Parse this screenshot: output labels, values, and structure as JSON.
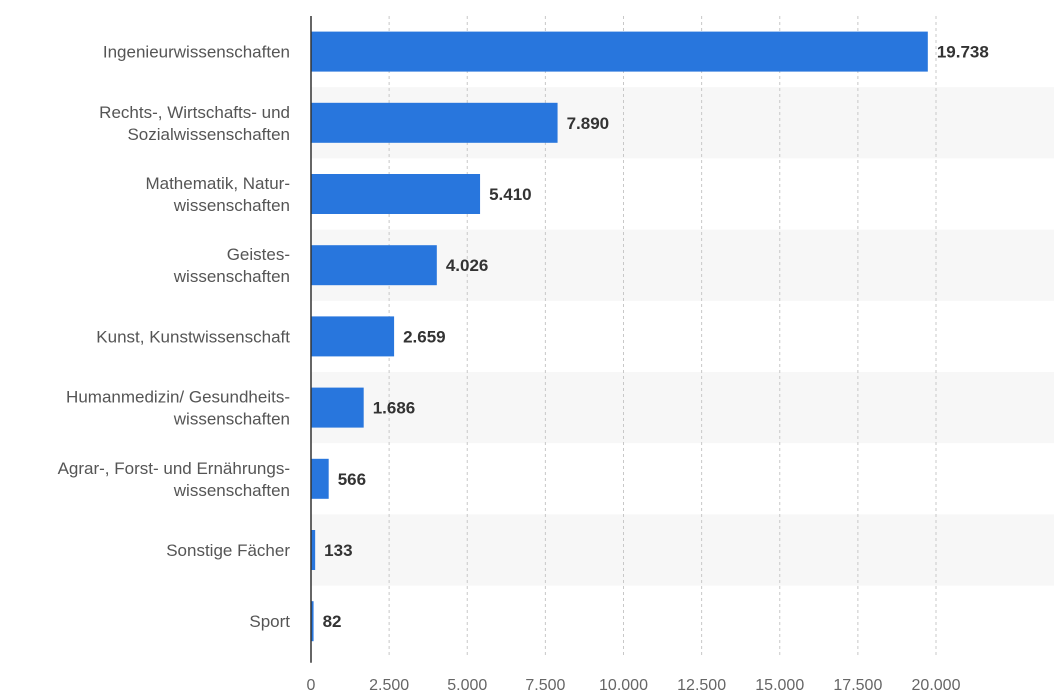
{
  "chart_data": {
    "type": "bar",
    "orientation": "horizontal",
    "title": "",
    "xlabel": "",
    "ylabel": "",
    "categories": [
      [
        "Ingenieurwissenschaften"
      ],
      [
        "Rechts-, Wirtschafts- und",
        "Sozialwissenschaften"
      ],
      [
        "Mathematik, Natur-",
        "wissenschaften"
      ],
      [
        "Geistes-",
        "wissenschaften"
      ],
      [
        "Kunst, Kunstwissenschaft"
      ],
      [
        "Humanmedizin/ Gesundheits-",
        "wissenschaften"
      ],
      [
        "Agrar-, Forst- und Ernährungs-",
        "wissenschaften"
      ],
      [
        "Sonstige Fächer"
      ],
      [
        "Sport"
      ]
    ],
    "values": [
      19738,
      7890,
      5410,
      4026,
      2659,
      1686,
      566,
      133,
      82
    ],
    "value_labels": [
      "19.738",
      "7.890",
      "5.410",
      "4.026",
      "2.659",
      "1.686",
      "566",
      "133",
      "82"
    ],
    "xlim": [
      0,
      22500
    ],
    "ticks": [
      0,
      2500,
      5000,
      7500,
      10000,
      12500,
      15000,
      17500,
      20000
    ],
    "tick_labels": [
      "0",
      "2.500",
      "5.000",
      "7.500",
      "10.000",
      "12.500",
      "15.000",
      "17.500",
      "20.000"
    ],
    "grid": true,
    "legend": "none",
    "colors": {
      "bar": "#2876dd",
      "band": "#f7f7f7",
      "grid": "#c8c8c8",
      "axis": "#333333"
    }
  }
}
